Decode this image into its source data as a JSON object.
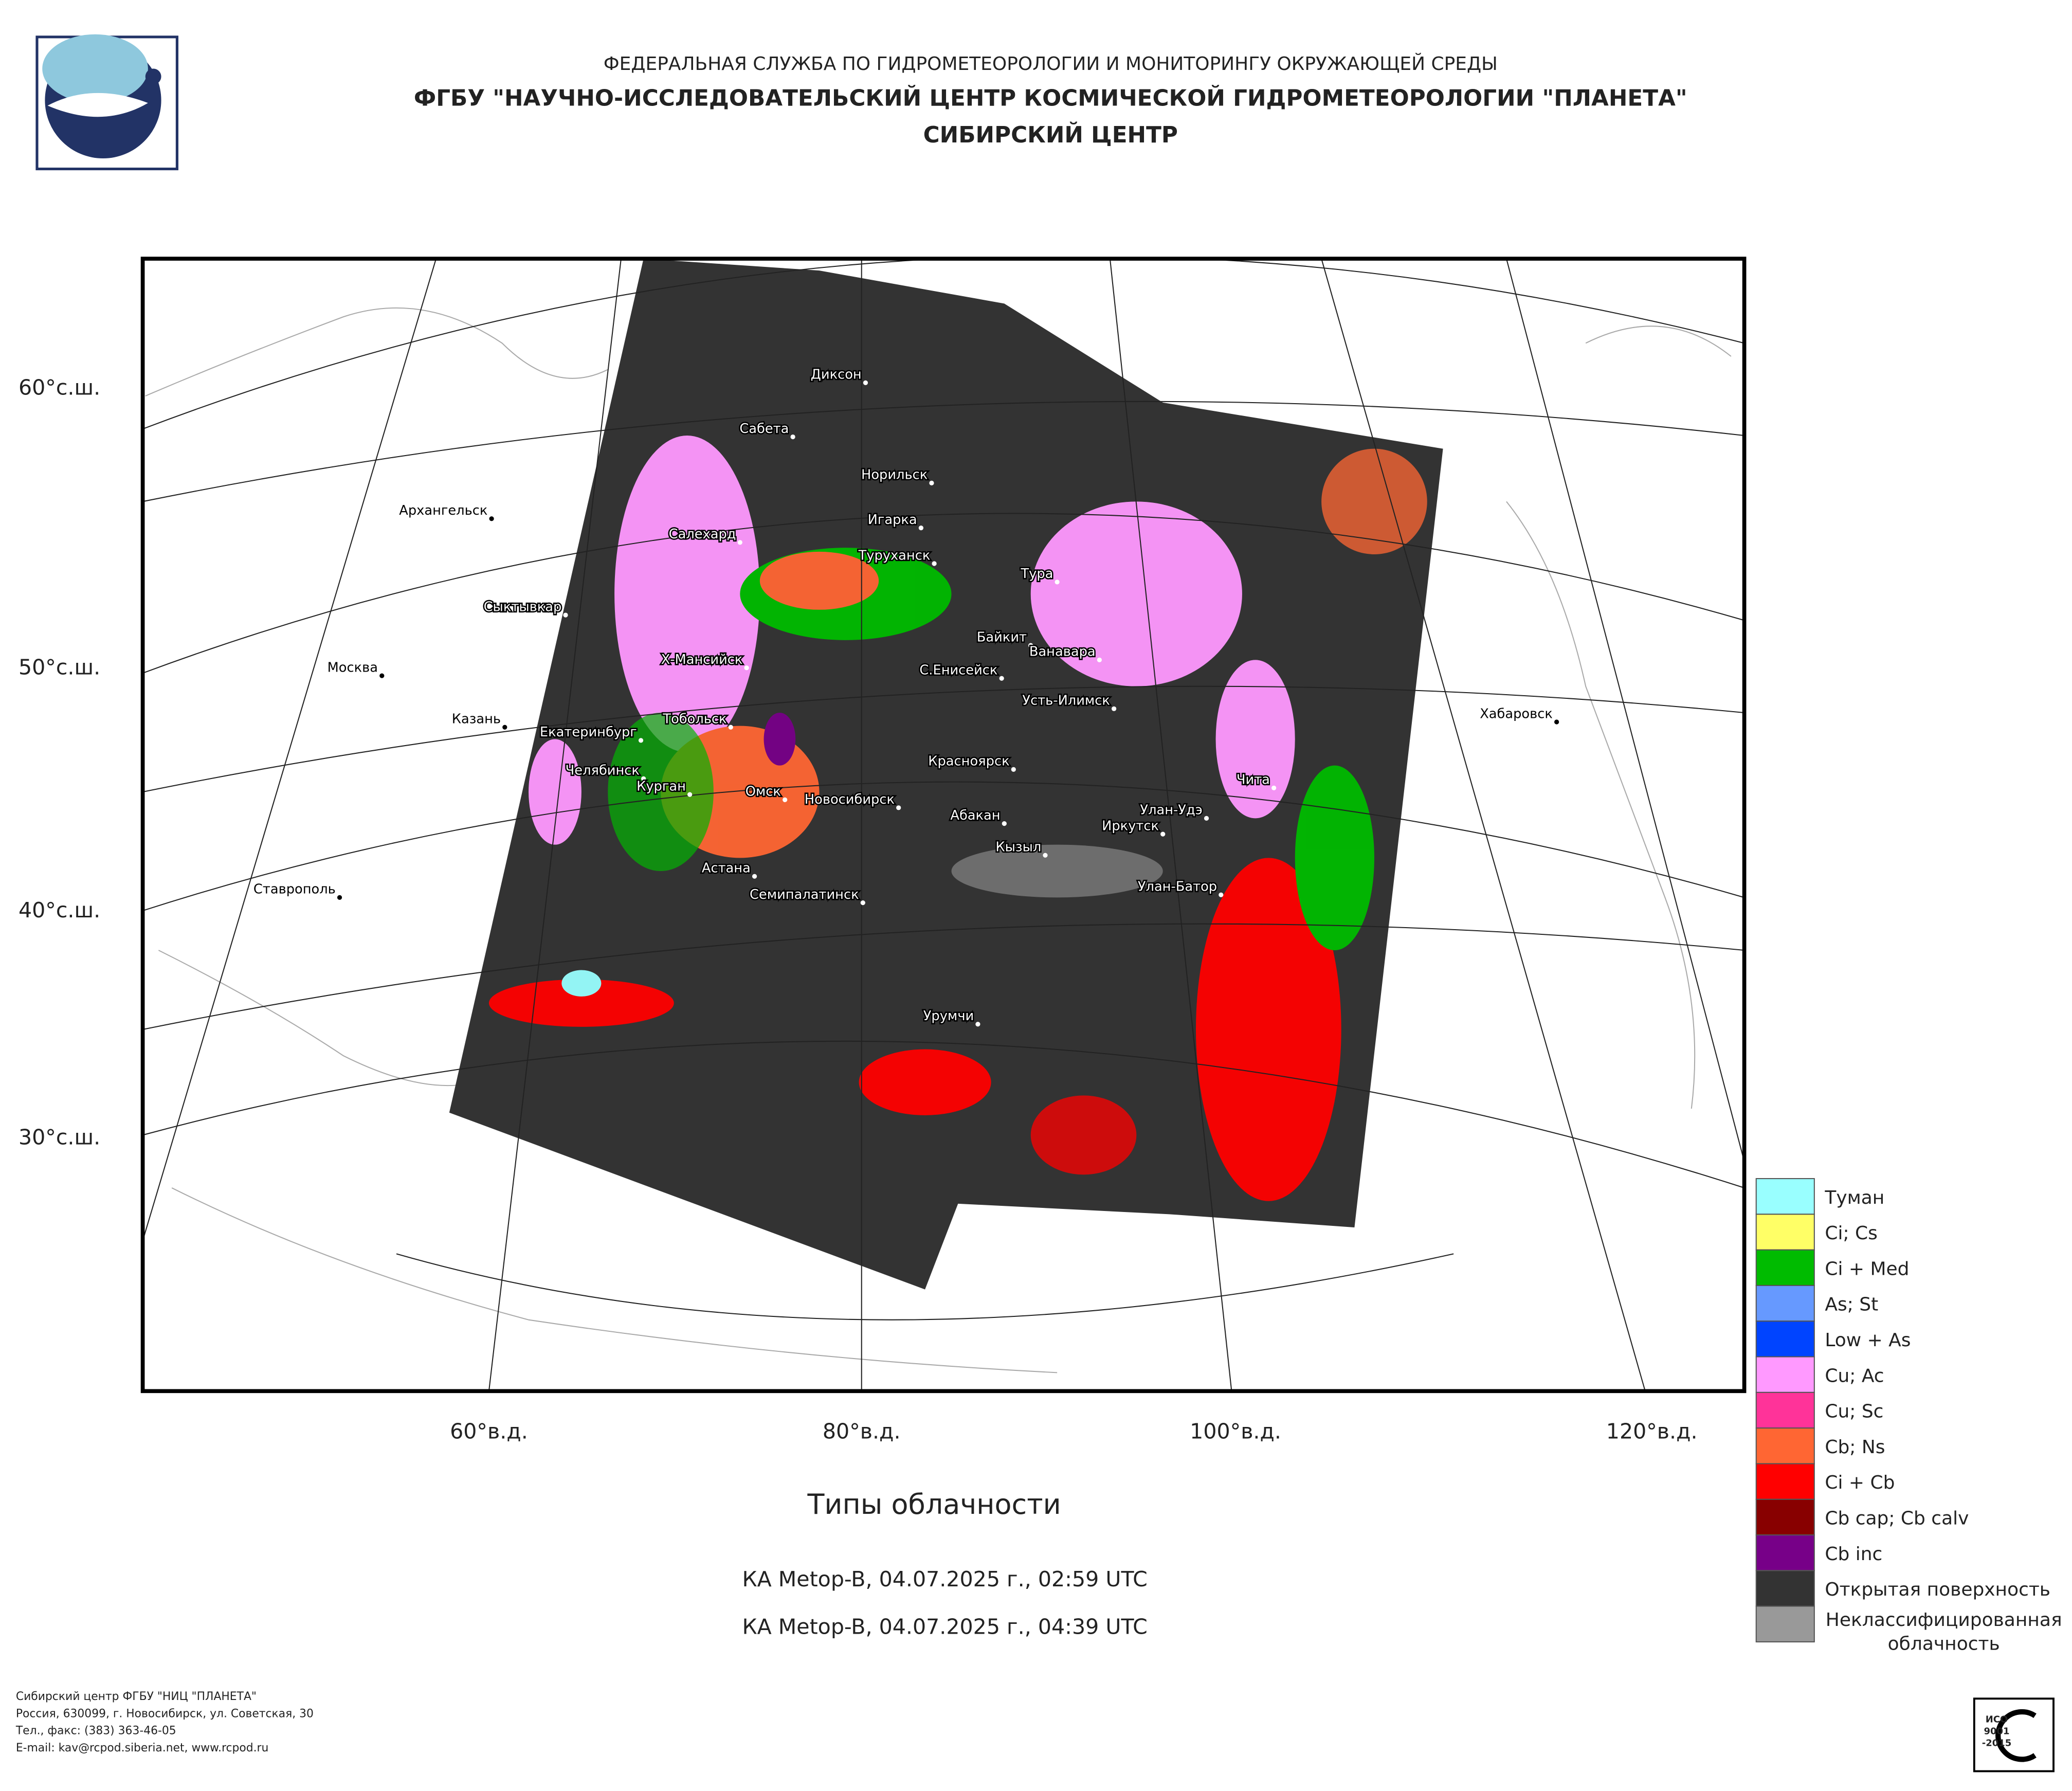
{
  "header": {
    "agency": "ФЕДЕРАЛЬНАЯ СЛУЖБА ПО ГИДРОМЕТЕОРОЛОГИИ И МОНИТОРИНГУ ОКРУЖАЮЩЕЙ СРЕДЫ",
    "center": "ФГБУ \"НАУЧНО-ИССЛЕДОВАТЕЛЬСКИЙ ЦЕНТР КОСМИЧЕСКОЙ ГИДРОМЕТЕОРОЛОГИИ \"ПЛАНЕТА\"",
    "branch": "СИБИРСКИЙ ЦЕНТР"
  },
  "map": {
    "lat_labels": [
      "60°с.ш.",
      "50°с.ш.",
      "40°с.ш.",
      "30°с.ш."
    ],
    "lon_labels": [
      "60°в.д.",
      "80°в.д.",
      "100°в.д.",
      "120°в.д."
    ],
    "cities": [
      "Диксон",
      "Сабета",
      "Норильск",
      "Архангельск",
      "Игарка",
      "Салехард",
      "Туруханск",
      "Тура",
      "Сыктывкар",
      "Байкит",
      "Ванавара",
      "Москва",
      "Х-Мансийск",
      "С.Енисейск",
      "Усть-Илимск",
      "Хабаровск",
      "Казань",
      "Тобольск",
      "Екатеринбург",
      "Красноярск",
      "Челябинск",
      "Чита",
      "Курган",
      "Омск",
      "Новосибирск",
      "Абакан",
      "Улан-Удэ",
      "Иркутск",
      "Кызыл",
      "Ставрополь",
      "Улан-Батор",
      "Астана",
      "Семипалатинск",
      "Урумчи"
    ]
  },
  "title": "Типы облачности",
  "passes": [
    "КА Metop-B, 04.07.2025 г., 02:59 UTC",
    "КА Metop-B, 04.07.2025 г., 04:39 UTC"
  ],
  "legend": [
    {
      "label": "Туман",
      "color": "#99ffff"
    },
    {
      "label": "Ci; Cs",
      "color": "#ffff66"
    },
    {
      "label": "Ci + Med",
      "color": "#00bb00"
    },
    {
      "label": "As; St",
      "color": "#6699ff"
    },
    {
      "label": "Low + As",
      "color": "#0044ff"
    },
    {
      "label": "Cu; Ac",
      "color": "#ff99ff"
    },
    {
      "label": "Cu; Sc",
      "color": "#ff3399"
    },
    {
      "label": "Cb; Ns",
      "color": "#ff6633"
    },
    {
      "label": "Ci + Cb",
      "color": "#ff0000"
    },
    {
      "label": "Cb cap; Cb calv",
      "color": "#880000"
    },
    {
      "label": "Cb inc",
      "color": "#770088"
    },
    {
      "label": "Открытая поверхность",
      "color": "#333333"
    },
    {
      "label": "Неклассифицированная облачность",
      "color": "#999999"
    }
  ],
  "footer": [
    "Сибирский центр ФГБУ \"НИЦ \"ПЛАНЕТА\"",
    "Россия, 630099, г. Новосибирск, ул. Советская, 30",
    "Тел., факс: (383) 363-46-05",
    "E-mail: kav@rcpod.siberia.net, www.rcpod.ru"
  ],
  "badge": [
    "ИСО",
    "9001",
    "-2015"
  ]
}
